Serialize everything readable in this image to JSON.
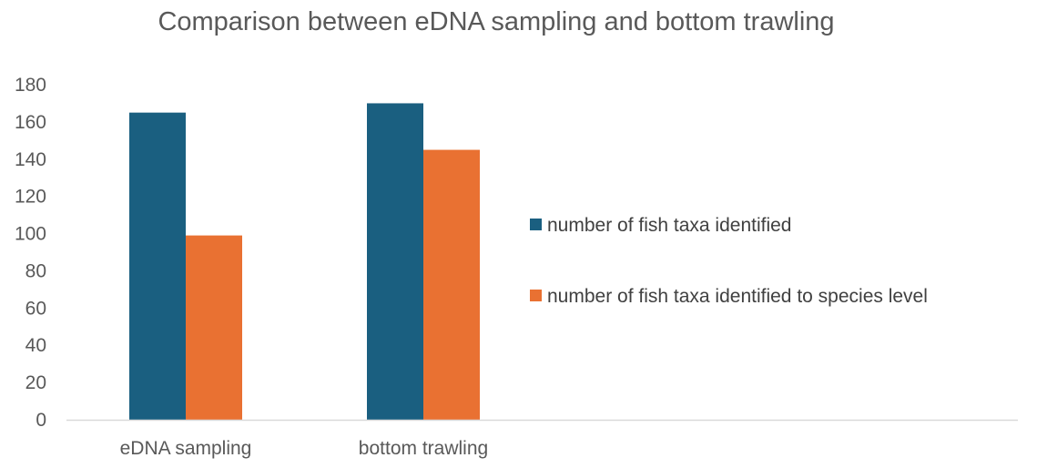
{
  "chart_data": {
    "type": "bar",
    "title": "Comparison between eDNA sampling and bottom trawling",
    "categories": [
      "eDNA sampling",
      "bottom trawling"
    ],
    "series": [
      {
        "name": "number of fish taxa identified",
        "values": [
          165,
          170
        ],
        "color": "#1a5f80"
      },
      {
        "name": "number of fish taxa identified to species level",
        "values": [
          99,
          145
        ],
        "color": "#e97132"
      }
    ],
    "ylim": [
      0,
      180
    ],
    "yticks": [
      0,
      20,
      40,
      60,
      80,
      100,
      120,
      140,
      160,
      180
    ],
    "grid": false,
    "legend_position": "right",
    "axis_color": "#d9d9d9"
  }
}
